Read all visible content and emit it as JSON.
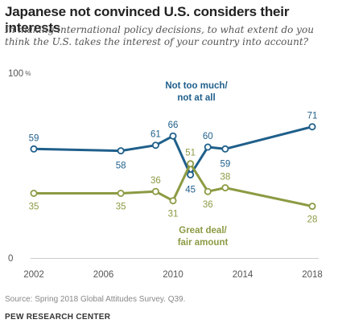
{
  "title": "Japanese not convinced U.S. considers their interests",
  "subtitle": "In making international policy decisions, to what extent do you think the U.S. takes the interest of your country into account?",
  "source": "Source: Spring 2018 Global Attitudes Survey. Q39.",
  "credit": "PEW RESEARCH CENTER",
  "chart_data": {
    "type": "line",
    "title": "Japanese not convinced U.S. considers their interests",
    "xlabel": "",
    "ylabel": "",
    "xlim": [
      2002,
      2018
    ],
    "ylim": [
      0,
      100
    ],
    "x_ticks": [
      "2002",
      "2006",
      "2010",
      "2014",
      "2018"
    ],
    "y_ticks": [
      {
        "value": 0,
        "label": "0"
      },
      {
        "value": 100,
        "label": "100",
        "unit": "%"
      }
    ],
    "grid": false,
    "series": [
      {
        "name_lines": [
          "Not too much/",
          "not at all"
        ],
        "color": "#1f5f8b",
        "label_position": "above",
        "points": [
          {
            "x": 2002,
            "y": 59
          },
          {
            "x": 2007,
            "y": 58
          },
          {
            "x": 2009,
            "y": 61
          },
          {
            "x": 2010,
            "y": 66
          },
          {
            "x": 2011,
            "y": 45
          },
          {
            "x": 2012,
            "y": 60
          },
          {
            "x": 2013,
            "y": 59
          },
          {
            "x": 2018,
            "y": 71
          }
        ]
      },
      {
        "name_lines": [
          "Great deal/",
          "fair amount"
        ],
        "color": "#8d9a43",
        "label_position": "below",
        "points": [
          {
            "x": 2002,
            "y": 35
          },
          {
            "x": 2007,
            "y": 35
          },
          {
            "x": 2009,
            "y": 36
          },
          {
            "x": 2010,
            "y": 31
          },
          {
            "x": 2011,
            "y": 51
          },
          {
            "x": 2012,
            "y": 36
          },
          {
            "x": 2013,
            "y": 38
          },
          {
            "x": 2018,
            "y": 28
          }
        ]
      }
    ]
  }
}
